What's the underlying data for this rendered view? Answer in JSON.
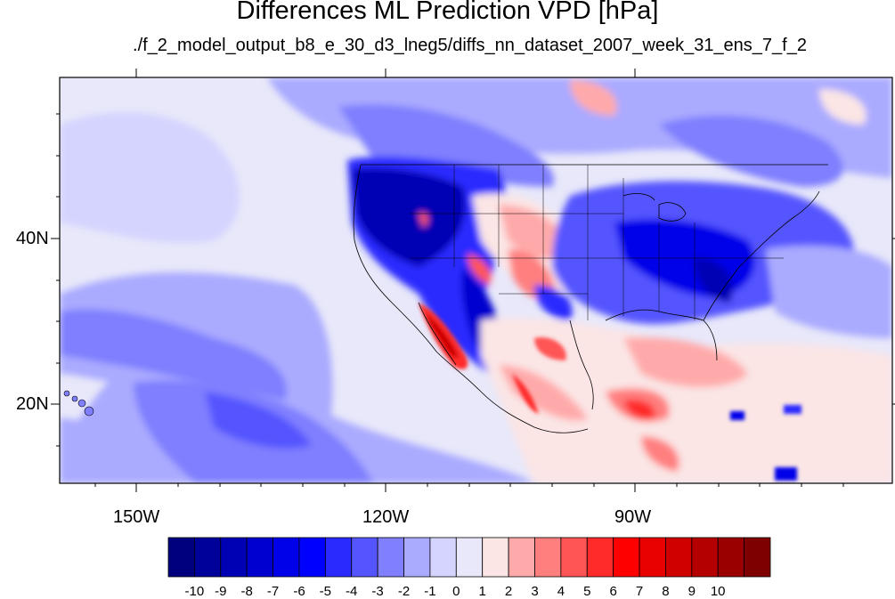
{
  "title": "Differences ML Prediction VPD [hPa]",
  "subtitle": "./f_2_model_output_b8_e_30_d3_lneg5/diffs_nn_dataset_2007_week_31_ens_7_f_2",
  "map": {
    "lat_labels": [
      "40N",
      "20N"
    ],
    "lon_labels": [
      "150W",
      "120W",
      "90W"
    ]
  },
  "colorbar": {
    "colors": [
      "#00007f",
      "#00009a",
      "#0000b4",
      "#0000cf",
      "#0000e9",
      "#0000ff",
      "#2a2aff",
      "#5555ff",
      "#7f7fff",
      "#aaaaff",
      "#d4d4ff",
      "#e8e8fa",
      "#fbe5e5",
      "#ffaaaa",
      "#ff7f7f",
      "#ff5555",
      "#ff2a2a",
      "#ff0000",
      "#e90000",
      "#cf0000",
      "#b40000",
      "#9a0000",
      "#7f0000"
    ],
    "labels": [
      "-10",
      "-9",
      "-8",
      "-7",
      "-6",
      "-5",
      "-4",
      "-3",
      "-2",
      "-1",
      "0",
      "1",
      "2",
      "3",
      "4",
      "5",
      "6",
      "7",
      "8",
      "9",
      "10"
    ]
  }
}
